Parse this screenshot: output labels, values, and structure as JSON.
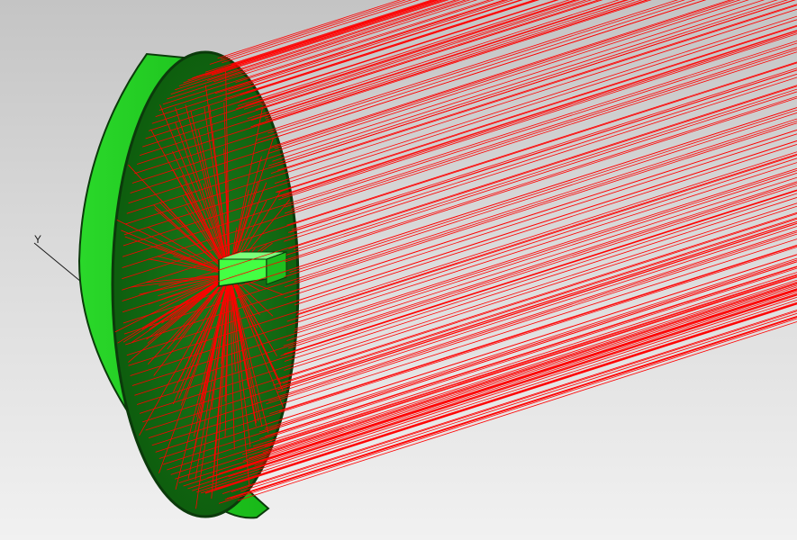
{
  "viewport": {
    "axis_label": "Y",
    "colors": {
      "background_top": "#c4c4c4",
      "background_bottom": "#f1f1f1",
      "reflector_outer": "#22dd22",
      "reflector_inner": "#106810",
      "rays": "#ff0000",
      "source": "#33ff33"
    }
  }
}
